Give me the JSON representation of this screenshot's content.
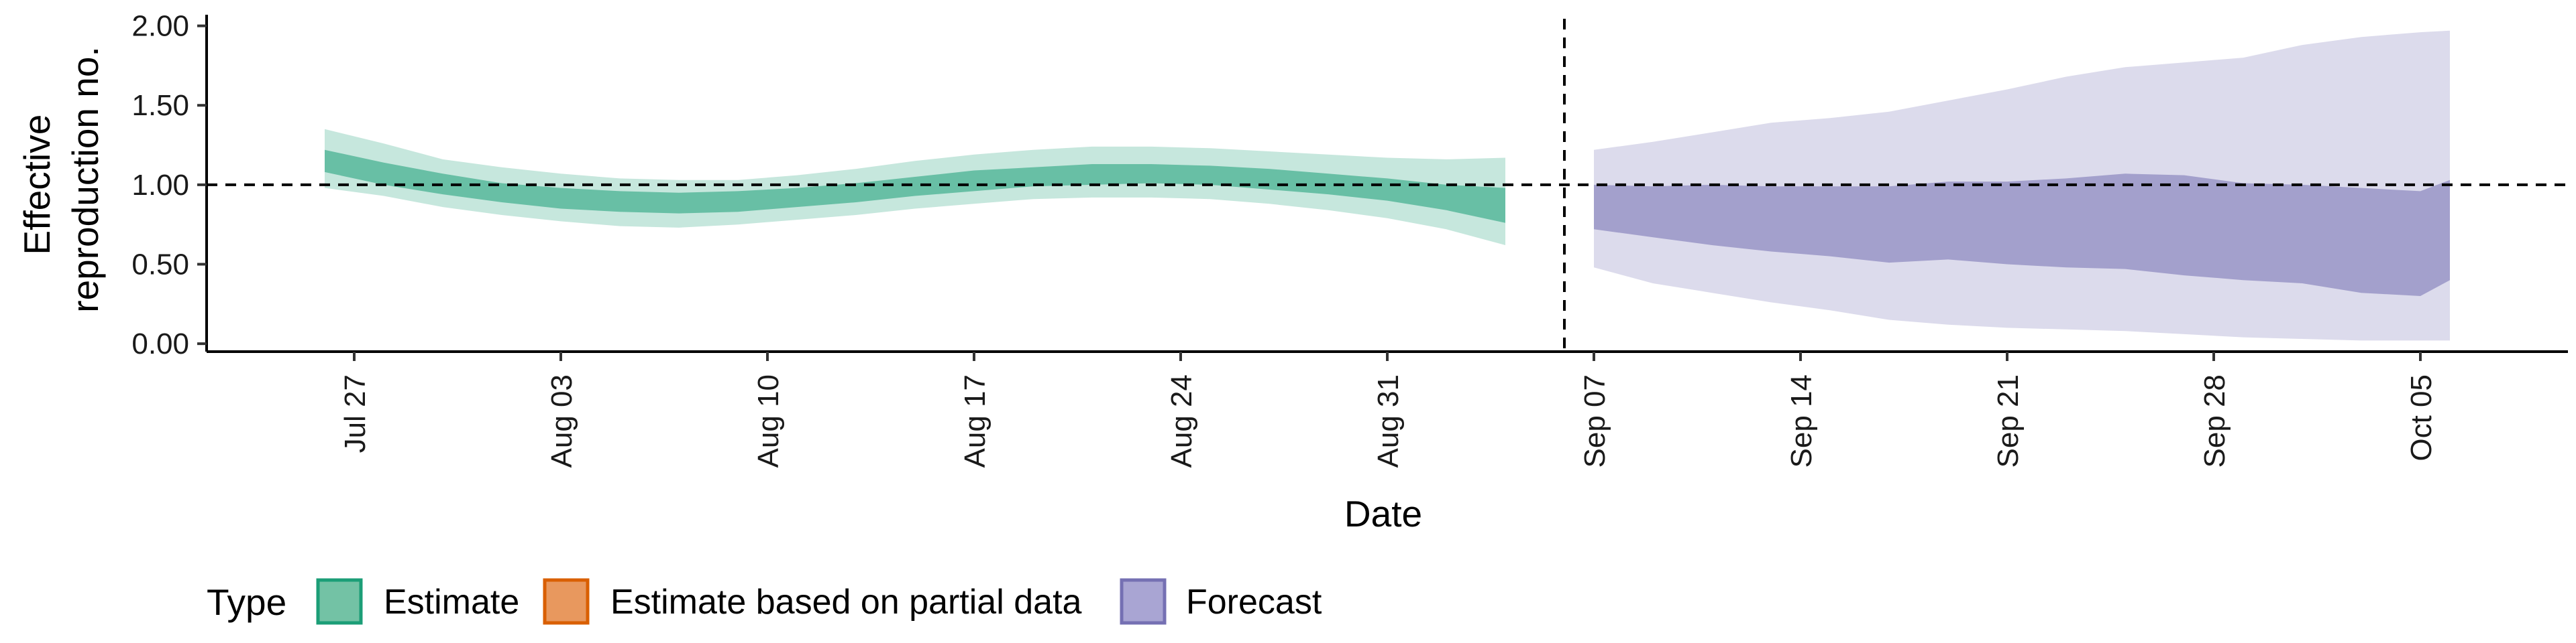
{
  "chart_data": {
    "type": "area",
    "xlabel": "Date",
    "ylabel_lines": [
      "Effective",
      "reproduction no."
    ],
    "ylim": [
      -0.05,
      2.07
    ],
    "yticks": [
      "0.00",
      "0.50",
      "1.00",
      "1.50",
      "2.00"
    ],
    "xlim": [
      "2021-07-22",
      "2021-10-10"
    ],
    "xticks": [
      {
        "date": "2021-07-27",
        "label": "Jul 27"
      },
      {
        "date": "2021-08-03",
        "label": "Aug 03"
      },
      {
        "date": "2021-08-10",
        "label": "Aug 10"
      },
      {
        "date": "2021-08-17",
        "label": "Aug 17"
      },
      {
        "date": "2021-08-24",
        "label": "Aug 24"
      },
      {
        "date": "2021-08-31",
        "label": "Aug 31"
      },
      {
        "date": "2021-09-07",
        "label": "Sep 07"
      },
      {
        "date": "2021-09-14",
        "label": "Sep 14"
      },
      {
        "date": "2021-09-21",
        "label": "Sep 21"
      },
      {
        "date": "2021-09-28",
        "label": "Sep 28"
      },
      {
        "date": "2021-10-05",
        "label": "Oct 05"
      }
    ],
    "reference_hline": 1.0,
    "forecast_vline": "2021-09-06",
    "legend": {
      "position": "bottom",
      "title": "Type",
      "items": [
        {
          "label": "Estimate",
          "fill": "#73c2a5",
          "stroke": "#1b9e77"
        },
        {
          "label": "Estimate based on partial data",
          "fill": "#e8985e",
          "stroke": "#d95f02"
        },
        {
          "label": "Forecast",
          "fill": "#a9a5d3",
          "stroke": "#7570b3"
        }
      ]
    },
    "series": [
      {
        "name": "Estimate",
        "color": "#1b9e77",
        "points": [
          {
            "date": "2021-07-26",
            "lo90": 0.98,
            "lo50": 1.08,
            "hi50": 1.22,
            "hi90": 1.35
          },
          {
            "date": "2021-07-28",
            "lo90": 0.93,
            "lo50": 1.0,
            "hi50": 1.14,
            "hi90": 1.26
          },
          {
            "date": "2021-07-30",
            "lo90": 0.86,
            "lo50": 0.94,
            "hi50": 1.07,
            "hi90": 1.16
          },
          {
            "date": "2021-08-01",
            "lo90": 0.81,
            "lo50": 0.89,
            "hi50": 1.01,
            "hi90": 1.11
          },
          {
            "date": "2021-08-03",
            "lo90": 0.77,
            "lo50": 0.85,
            "hi50": 0.98,
            "hi90": 1.07
          },
          {
            "date": "2021-08-05",
            "lo90": 0.74,
            "lo50": 0.83,
            "hi50": 0.96,
            "hi90": 1.04
          },
          {
            "date": "2021-08-07",
            "lo90": 0.73,
            "lo50": 0.82,
            "hi50": 0.95,
            "hi90": 1.03
          },
          {
            "date": "2021-08-09",
            "lo90": 0.75,
            "lo50": 0.83,
            "hi50": 0.96,
            "hi90": 1.03
          },
          {
            "date": "2021-08-11",
            "lo90": 0.78,
            "lo50": 0.86,
            "hi50": 0.98,
            "hi90": 1.06
          },
          {
            "date": "2021-08-13",
            "lo90": 0.81,
            "lo50": 0.89,
            "hi50": 1.01,
            "hi90": 1.1
          },
          {
            "date": "2021-08-15",
            "lo90": 0.85,
            "lo50": 0.93,
            "hi50": 1.05,
            "hi90": 1.15
          },
          {
            "date": "2021-08-17",
            "lo90": 0.88,
            "lo50": 0.96,
            "hi50": 1.09,
            "hi90": 1.19
          },
          {
            "date": "2021-08-19",
            "lo90": 0.91,
            "lo50": 0.99,
            "hi50": 1.11,
            "hi90": 1.22
          },
          {
            "date": "2021-08-21",
            "lo90": 0.92,
            "lo50": 1.0,
            "hi50": 1.13,
            "hi90": 1.24
          },
          {
            "date": "2021-08-23",
            "lo90": 0.92,
            "lo50": 1.01,
            "hi50": 1.13,
            "hi90": 1.24
          },
          {
            "date": "2021-08-25",
            "lo90": 0.91,
            "lo50": 1.0,
            "hi50": 1.12,
            "hi90": 1.23
          },
          {
            "date": "2021-08-27",
            "lo90": 0.88,
            "lo50": 0.97,
            "hi50": 1.1,
            "hi90": 1.21
          },
          {
            "date": "2021-08-29",
            "lo90": 0.84,
            "lo50": 0.94,
            "hi50": 1.07,
            "hi90": 1.19
          },
          {
            "date": "2021-08-31",
            "lo90": 0.79,
            "lo50": 0.9,
            "hi50": 1.04,
            "hi90": 1.17
          },
          {
            "date": "2021-09-02",
            "lo90": 0.72,
            "lo50": 0.84,
            "hi50": 1.0,
            "hi90": 1.16
          },
          {
            "date": "2021-09-04",
            "lo90": 0.62,
            "lo50": 0.76,
            "hi50": 0.98,
            "hi90": 1.17
          }
        ]
      },
      {
        "name": "Forecast",
        "color": "#7570b3",
        "points": [
          {
            "date": "2021-09-07",
            "lo90": 0.48,
            "lo50": 0.72,
            "hi50": 1.0,
            "hi90": 1.22
          },
          {
            "date": "2021-09-09",
            "lo90": 0.38,
            "lo50": 0.67,
            "hi50": 0.99,
            "hi90": 1.27
          },
          {
            "date": "2021-09-11",
            "lo90": 0.32,
            "lo50": 0.62,
            "hi50": 1.0,
            "hi90": 1.33
          },
          {
            "date": "2021-09-13",
            "lo90": 0.26,
            "lo50": 0.58,
            "hi50": 0.99,
            "hi90": 1.39
          },
          {
            "date": "2021-09-15",
            "lo90": 0.21,
            "lo50": 0.55,
            "hi50": 0.99,
            "hi90": 1.42
          },
          {
            "date": "2021-09-17",
            "lo90": 0.15,
            "lo50": 0.51,
            "hi50": 0.99,
            "hi90": 1.46
          },
          {
            "date": "2021-09-19",
            "lo90": 0.12,
            "lo50": 0.53,
            "hi50": 1.02,
            "hi90": 1.53
          },
          {
            "date": "2021-09-21",
            "lo90": 0.1,
            "lo50": 0.5,
            "hi50": 1.02,
            "hi90": 1.6
          },
          {
            "date": "2021-09-23",
            "lo90": 0.09,
            "lo50": 0.48,
            "hi50": 1.04,
            "hi90": 1.68
          },
          {
            "date": "2021-09-25",
            "lo90": 0.08,
            "lo50": 0.47,
            "hi50": 1.07,
            "hi90": 1.74
          },
          {
            "date": "2021-09-27",
            "lo90": 0.06,
            "lo50": 0.43,
            "hi50": 1.06,
            "hi90": 1.77
          },
          {
            "date": "2021-09-29",
            "lo90": 0.04,
            "lo50": 0.4,
            "hi50": 1.01,
            "hi90": 1.8
          },
          {
            "date": "2021-10-01",
            "lo90": 0.03,
            "lo50": 0.38,
            "hi50": 1.0,
            "hi90": 1.88
          },
          {
            "date": "2021-10-03",
            "lo90": 0.02,
            "lo50": 0.32,
            "hi50": 0.98,
            "hi90": 1.93
          },
          {
            "date": "2021-10-05",
            "lo90": 0.02,
            "lo50": 0.3,
            "hi50": 0.96,
            "hi90": 1.96
          },
          {
            "date": "2021-10-06",
            "lo90": 0.02,
            "lo50": 0.4,
            "hi50": 1.03,
            "hi90": 1.97
          }
        ]
      }
    ]
  }
}
